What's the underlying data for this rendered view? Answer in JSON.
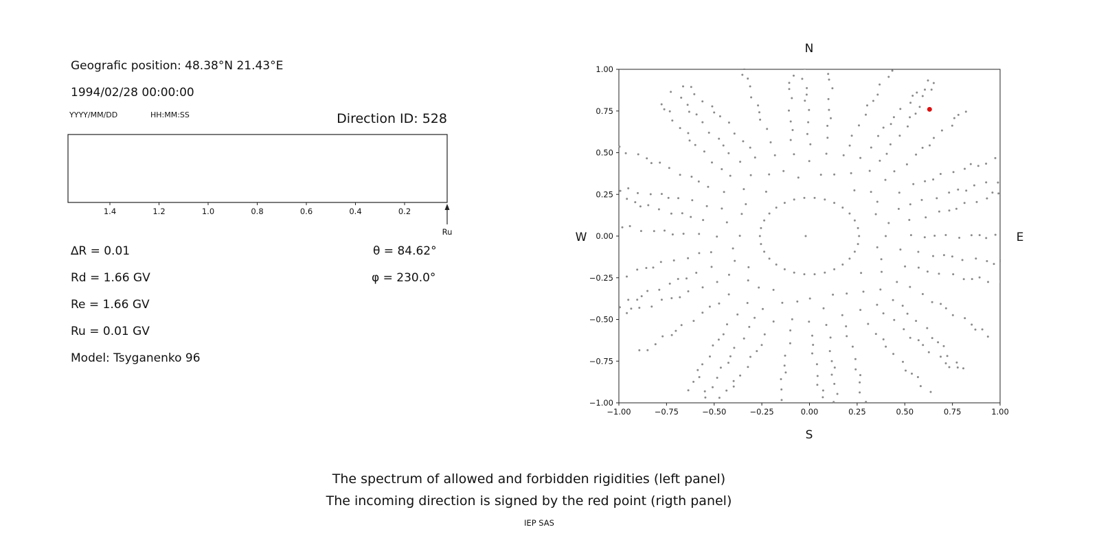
{
  "figure": {
    "background": "#ffffff",
    "text_color": "#111111"
  },
  "left_panel": {
    "position_label": "Geografic position: 48.38°N 21.43°E",
    "datetime": "1994/02/28 00:00:00",
    "date_format_hint": "YYYY/MM/DD",
    "time_format_hint": "HH:MM:SS",
    "direction_id_label": "Direction ID: 528",
    "params": {
      "delta_r": "∆R = 0.01",
      "rd": "Rd = 1.66 GV",
      "re": "Re = 1.66 GV",
      "ru": "Ru = 0.01 GV",
      "model": "Model: Tsyganenko 96",
      "theta": "θ = 84.62°",
      "phi": "φ = 230.0°"
    }
  },
  "captions": {
    "line1": "The spectrum of allowed and forbidden rigidities (left panel)",
    "line2": "The incoming direction is signed by the red point (rigth panel)",
    "credit": "IEP SAS"
  },
  "chart_data": [
    {
      "name": "rigidity-spectrum",
      "type": "line",
      "title": "",
      "xticks": [
        1.4,
        1.2,
        1.0,
        0.8,
        0.6,
        0.4,
        0.2
      ],
      "xtick_labels": [
        "1.4",
        "1.2",
        "1.0",
        "0.8",
        "0.6",
        "0.4",
        "0.2"
      ],
      "x_axis_direction": "values decrease to the right",
      "series": [],
      "annotations": [
        {
          "type": "up-arrow",
          "position": "right-end-of-x-axis",
          "label": "Ru"
        }
      ]
    },
    {
      "name": "incoming-direction-map",
      "type": "scatter",
      "xlim": [
        -1.0,
        1.0
      ],
      "ylim": [
        -1.0,
        1.0
      ],
      "xticks": [
        -1.0,
        -0.75,
        -0.5,
        -0.25,
        0.0,
        0.25,
        0.5,
        0.75,
        1.0
      ],
      "xtick_labels": [
        "−1.00",
        "−0.75",
        "−0.50",
        "−0.25",
        "0.00",
        "0.25",
        "0.50",
        "0.75",
        "1.00"
      ],
      "yticks": [
        -1.0,
        -0.75,
        -0.5,
        -0.25,
        0.0,
        0.25,
        0.5,
        0.75,
        1.0
      ],
      "ytick_labels": [
        "−1.00",
        "−0.75",
        "−0.50",
        "−0.25",
        "0.00",
        "0.25",
        "0.50",
        "0.75",
        "1.00"
      ],
      "grid": false,
      "legend": "none",
      "compass_labels": {
        "top": "N",
        "bottom": "S",
        "left": "W",
        "right": "E"
      },
      "red_point": {
        "x": 0.63,
        "y": 0.76
      },
      "gray_pattern": {
        "description": "radial spokes of small gray dots around an inner dotted ring; dots get denser toward the outer edge and are clipped at the axes box",
        "dot_color": "#8a8a8a",
        "red_color": "#dd1111",
        "inner_ring": {
          "rx": 0.26,
          "ry": 0.23,
          "dots": 30
        },
        "center_dot": {
          "x": -0.02,
          "y": 0.0
        },
        "spokes": {
          "count": 36,
          "start_angle_deg": 0,
          "inner_radius": 0.4,
          "inner_variation": 0.04,
          "outer_radius": 1.12,
          "dots_per_spoke": 13,
          "density_power": 0.72,
          "curvature_deg": 6,
          "jitter": 0.013
        }
      }
    }
  ]
}
